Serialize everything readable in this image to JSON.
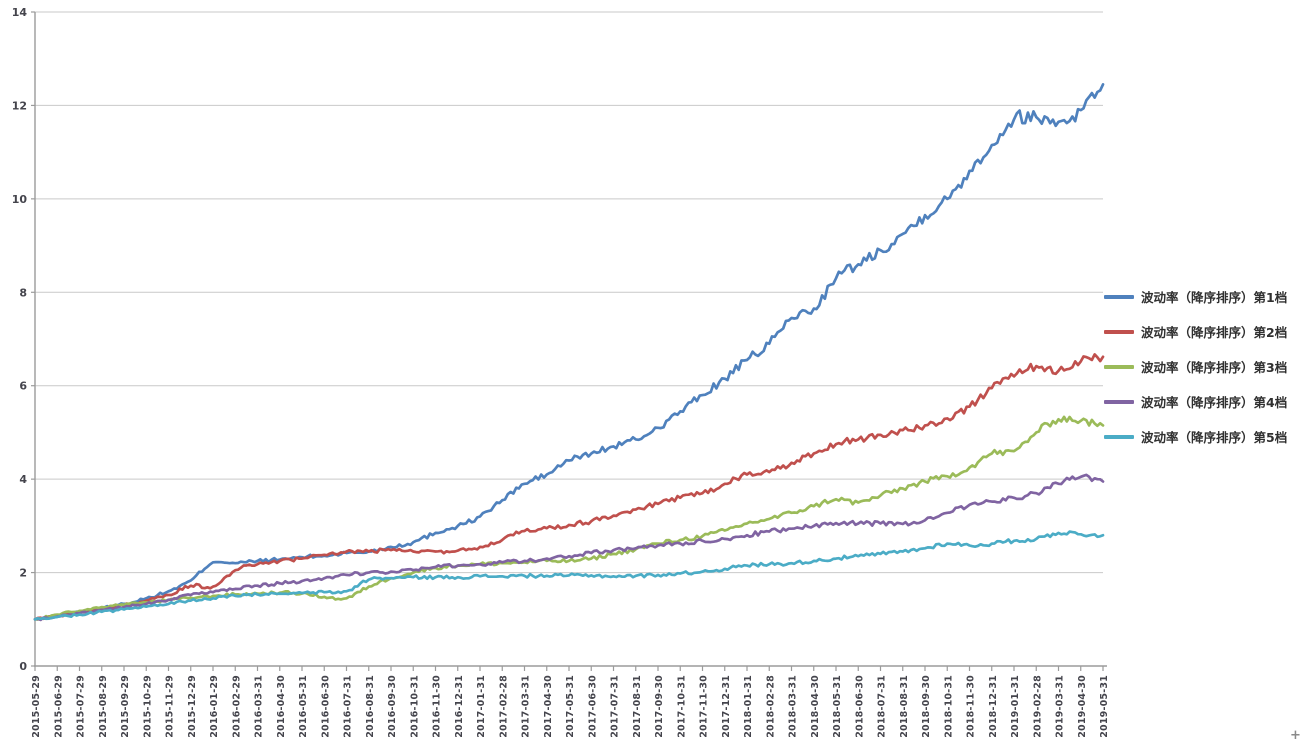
{
  "chart_data": {
    "type": "line",
    "title": "",
    "xlabel": "",
    "ylabel": "",
    "ylim": [
      0,
      14
    ],
    "y_ticks": [
      0,
      2,
      4,
      6,
      8,
      10,
      12,
      14
    ],
    "grid": true,
    "legend_position": "right",
    "colors": {
      "gridline": "#c9c9c9",
      "axis": "#9b9b9b",
      "tick_label": "#44444c"
    },
    "x_labels": [
      "2015-05-29",
      "2015-06-29",
      "2015-07-29",
      "2015-08-29",
      "2015-09-29",
      "2015-10-29",
      "2015-11-29",
      "2015-12-29",
      "2016-01-29",
      "2016-02-29",
      "2016-03-31",
      "2016-04-30",
      "2016-05-31",
      "2016-06-30",
      "2016-07-31",
      "2016-08-31",
      "2016-09-30",
      "2016-10-31",
      "2016-11-30",
      "2016-12-31",
      "2017-01-31",
      "2017-02-28",
      "2017-03-31",
      "2017-04-30",
      "2017-05-31",
      "2017-06-30",
      "2017-07-31",
      "2017-08-31",
      "2017-09-30",
      "2017-10-31",
      "2017-11-30",
      "2017-12-31",
      "2018-01-31",
      "2018-02-28",
      "2018-03-31",
      "2018-04-30",
      "2018-05-31",
      "2018-06-30",
      "2018-07-31",
      "2018-08-31",
      "2018-09-30",
      "2018-10-31",
      "2018-11-30",
      "2018-12-31",
      "2019-01-31",
      "2019-02-28",
      "2019-03-31",
      "2019-04-30",
      "2019-05-31"
    ],
    "series": [
      {
        "name": "波动率（降序排序）第1档",
        "color": "#4F81BD",
        "values": [
          1.0,
          1.08,
          1.16,
          1.24,
          1.33,
          1.45,
          1.6,
          1.83,
          2.22,
          2.2,
          2.25,
          2.28,
          2.33,
          2.36,
          2.42,
          2.45,
          2.55,
          2.65,
          2.85,
          3.0,
          3.2,
          3.55,
          3.9,
          4.1,
          4.4,
          4.55,
          4.7,
          4.85,
          5.1,
          5.45,
          5.8,
          6.15,
          6.55,
          6.9,
          7.45,
          7.65,
          8.3,
          8.6,
          8.9,
          9.25,
          9.65,
          10.0,
          10.6,
          11.15,
          11.7,
          11.75,
          11.65,
          11.9,
          12.45
        ]
      },
      {
        "name": "波动率（降序排序）第2档",
        "color": "#C0504D",
        "values": [
          1.0,
          1.07,
          1.14,
          1.22,
          1.3,
          1.4,
          1.52,
          1.72,
          1.7,
          2.05,
          2.18,
          2.25,
          2.3,
          2.38,
          2.45,
          2.45,
          2.48,
          2.45,
          2.45,
          2.47,
          2.55,
          2.7,
          2.89,
          2.95,
          3.02,
          3.1,
          3.22,
          3.35,
          3.47,
          3.6,
          3.7,
          3.9,
          4.1,
          4.15,
          4.35,
          4.55,
          4.75,
          4.85,
          4.95,
          5.05,
          5.15,
          5.3,
          5.55,
          5.95,
          6.2,
          6.42,
          6.32,
          6.52,
          6.62
        ]
      },
      {
        "name": "波动率（降序排序）第3档",
        "color": "#9BBB59",
        "values": [
          1.0,
          1.1,
          1.18,
          1.26,
          1.31,
          1.36,
          1.41,
          1.46,
          1.5,
          1.53,
          1.55,
          1.57,
          1.55,
          1.48,
          1.45,
          1.7,
          1.88,
          2.0,
          2.1,
          2.15,
          2.18,
          2.2,
          2.22,
          2.25,
          2.25,
          2.3,
          2.4,
          2.5,
          2.62,
          2.7,
          2.78,
          2.9,
          3.05,
          3.15,
          3.28,
          3.42,
          3.57,
          3.5,
          3.65,
          3.8,
          3.95,
          4.06,
          4.25,
          4.55,
          4.6,
          5.0,
          5.28,
          5.25,
          5.15
        ]
      },
      {
        "name": "波动率（降序排序）第4档",
        "color": "#8064A2",
        "values": [
          1.0,
          1.06,
          1.13,
          1.2,
          1.26,
          1.33,
          1.42,
          1.52,
          1.58,
          1.65,
          1.72,
          1.77,
          1.82,
          1.88,
          1.95,
          2.0,
          2.02,
          2.05,
          2.12,
          2.15,
          2.18,
          2.22,
          2.25,
          2.3,
          2.35,
          2.42,
          2.48,
          2.52,
          2.58,
          2.62,
          2.68,
          2.72,
          2.8,
          2.88,
          2.94,
          3.0,
          3.06,
          3.05,
          3.05,
          3.04,
          3.12,
          3.28,
          3.45,
          3.52,
          3.6,
          3.7,
          3.9,
          4.05,
          3.95
        ]
      },
      {
        "name": "波动率（降序排序）第5档",
        "color": "#4BACC6",
        "values": [
          1.0,
          1.05,
          1.1,
          1.16,
          1.21,
          1.27,
          1.33,
          1.4,
          1.45,
          1.5,
          1.53,
          1.55,
          1.56,
          1.58,
          1.6,
          1.85,
          1.88,
          1.9,
          1.9,
          1.9,
          1.92,
          1.92,
          1.93,
          1.93,
          1.94,
          1.94,
          1.92,
          1.93,
          1.95,
          1.98,
          2.02,
          2.08,
          2.15,
          2.18,
          2.2,
          2.25,
          2.3,
          2.35,
          2.4,
          2.45,
          2.52,
          2.62,
          2.58,
          2.62,
          2.68,
          2.72,
          2.85,
          2.82,
          2.8
        ]
      }
    ]
  },
  "artifacts": {
    "cursor_mark": "+"
  }
}
